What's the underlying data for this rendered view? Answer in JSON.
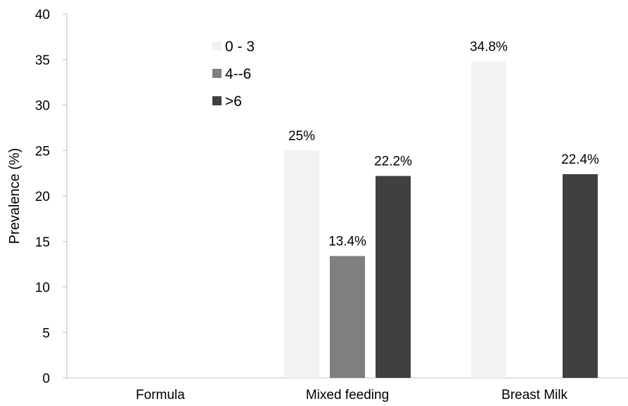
{
  "chart_data": {
    "type": "bar",
    "categories": [
      "Formula",
      "Mixed feeding",
      "Breast Milk"
    ],
    "series": [
      {
        "name": "0 - 3",
        "color": "#f2f2f2",
        "values": [
          null,
          25,
          34.8
        ],
        "labels": [
          null,
          "25%",
          "34.8%"
        ]
      },
      {
        "name": "4--6",
        "color": "#7f7f7f",
        "values": [
          null,
          13.4,
          null
        ],
        "labels": [
          null,
          "13.4%",
          null
        ]
      },
      {
        "name": ">6",
        "color": "#404040",
        "values": [
          null,
          22.2,
          22.4
        ],
        "labels": [
          null,
          "22.2%",
          "22.4%"
        ]
      }
    ],
    "ylabel": "Prevalence (%)",
    "xlabel": "",
    "ylim": [
      0,
      40
    ],
    "yticks": [
      0,
      5,
      10,
      15,
      20,
      25,
      30,
      35,
      40
    ],
    "legend_position": "top-center",
    "grid": false
  }
}
